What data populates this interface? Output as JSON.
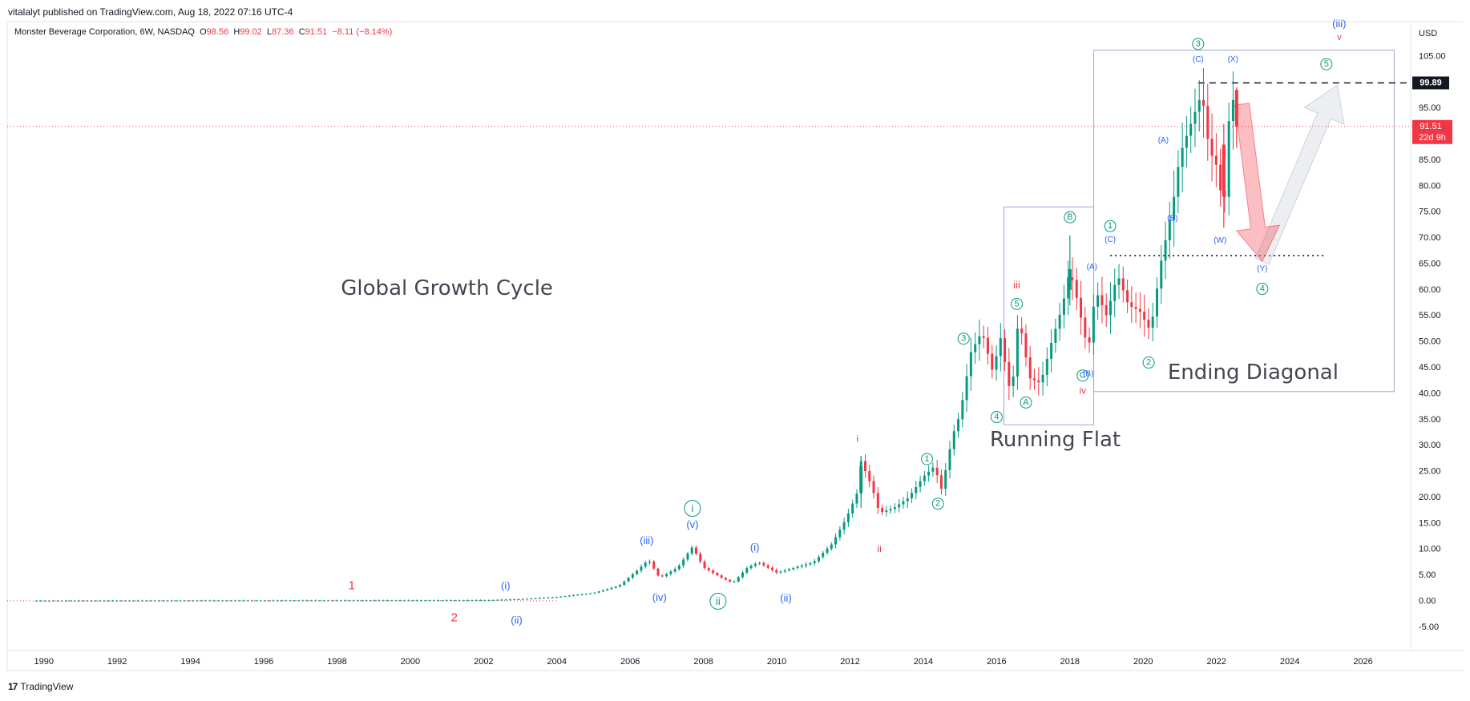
{
  "header": {
    "published": "vitalalyt published on TradingView.com, Aug 18, 2022 07:16 UTC-4"
  },
  "legend": {
    "symbol": "Monster Beverage Corporation, 6W, NASDAQ",
    "o_label": "O",
    "o_value": "98.56",
    "h_label": "H",
    "h_value": "99.02",
    "l_label": "L",
    "l_value": "87.36",
    "c_label": "C",
    "c_value": "91.51",
    "change": "−8.11 (−8.14%)"
  },
  "footer": {
    "brand": "TradingView"
  },
  "colors": {
    "up": "#089981",
    "down": "#f23645",
    "wave_blue": "#2962ff",
    "wave_green": "#089981",
    "wave_red": "#f23645",
    "box": "#9aa5d8"
  },
  "chart_data": {
    "type": "candlestick",
    "currency": "USD",
    "x_ticks": [
      "1990",
      "1992",
      "1994",
      "1996",
      "1998",
      "2000",
      "2002",
      "2004",
      "2006",
      "2008",
      "2010",
      "2012",
      "2014",
      "2016",
      "2018",
      "2020",
      "2022",
      "2024",
      "2026"
    ],
    "y_ticks": [
      "105.00",
      "95.00",
      "90.00",
      "85.00",
      "80.00",
      "75.00",
      "70.00",
      "65.00",
      "60.00",
      "55.00",
      "50.00",
      "45.00",
      "40.00",
      "35.00",
      "30.00",
      "25.00",
      "20.00",
      "15.00",
      "10.00",
      "5.00",
      "0.00",
      "-5.00"
    ],
    "xlim": [
      1989,
      2027.3
    ],
    "ylim": [
      -9.5,
      111.7
    ],
    "last_price": "91.51",
    "countdown": "22d 9h",
    "level_label": "99.89",
    "level_high": 99.89,
    "level_low": 66.6,
    "price_path": [
      [
        1989.8,
        0.1
      ],
      [
        2002.0,
        0.2
      ],
      [
        2003.0,
        0.4
      ],
      [
        2004.0,
        0.8
      ],
      [
        2005.0,
        1.6
      ],
      [
        2005.7,
        3.0
      ],
      [
        2006.2,
        6.0
      ],
      [
        2006.5,
        8.0
      ],
      [
        2006.8,
        4.5
      ],
      [
        2007.3,
        6.5
      ],
      [
        2007.7,
        10.5
      ],
      [
        2008.0,
        6.5
      ],
      [
        2008.5,
        4.5
      ],
      [
        2008.8,
        3.5
      ],
      [
        2009.2,
        6.5
      ],
      [
        2009.5,
        7.5
      ],
      [
        2010.0,
        5.5
      ],
      [
        2010.5,
        6.5
      ],
      [
        2011.0,
        7.5
      ],
      [
        2011.5,
        11.0
      ],
      [
        2011.9,
        16.0
      ],
      [
        2012.2,
        21.0
      ],
      [
        2012.3,
        27.0
      ],
      [
        2012.6,
        22.0
      ],
      [
        2012.8,
        17.0
      ],
      [
        2013.2,
        18.0
      ],
      [
        2013.6,
        20.0
      ],
      [
        2014.0,
        24.0
      ],
      [
        2014.3,
        26.0
      ],
      [
        2014.5,
        21.5
      ],
      [
        2014.8,
        32.0
      ],
      [
        2015.0,
        36.0
      ],
      [
        2015.3,
        48.0
      ],
      [
        2015.6,
        52.0
      ],
      [
        2015.9,
        44.0
      ],
      [
        2016.1,
        51.0
      ],
      [
        2016.4,
        39.0
      ],
      [
        2016.6,
        55.0
      ],
      [
        2016.9,
        43.0
      ],
      [
        2017.2,
        42.0
      ],
      [
        2017.5,
        50.0
      ],
      [
        2017.8,
        57.0
      ],
      [
        2018.0,
        64.0
      ],
      [
        2018.2,
        58.0
      ],
      [
        2018.5,
        48.0
      ],
      [
        2018.7,
        60.0
      ],
      [
        2019.0,
        55.0
      ],
      [
        2019.3,
        63.0
      ],
      [
        2019.6,
        57.0
      ],
      [
        2019.9,
        56.0
      ],
      [
        2020.2,
        52.0
      ],
      [
        2020.5,
        66.0
      ],
      [
        2020.8,
        76.0
      ],
      [
        2021.0,
        86.0
      ],
      [
        2021.3,
        92.0
      ],
      [
        2021.6,
        98.0
      ],
      [
        2021.8,
        87.0
      ],
      [
        2022.0,
        84.0
      ],
      [
        2022.2,
        75.0
      ],
      [
        2022.35,
        94.0
      ],
      [
        2022.55,
        99.0
      ],
      [
        2022.65,
        91.5
      ]
    ],
    "highlight_candles": [
      {
        "t": 2012.3,
        "o": 21,
        "h": 28,
        "l": 18,
        "c": 26
      },
      {
        "t": 2018.0,
        "o": 60,
        "h": 70.5,
        "l": 57,
        "c": 64
      },
      {
        "t": 2022.2,
        "o": 88,
        "h": 92,
        "l": 72,
        "c": 78
      },
      {
        "t": 2022.55,
        "o": 98.56,
        "h": 99.02,
        "l": 87.36,
        "c": 91.51
      }
    ],
    "annotations": [
      {
        "text": "1",
        "t": 1998.4,
        "p": 3.0,
        "color": "red",
        "size": 15
      },
      {
        "text": "2",
        "t": 2001.2,
        "p": -3.2,
        "color": "red",
        "size": 15
      },
      {
        "text": "(i)",
        "t": 2002.6,
        "p": 3.0,
        "color": "blue",
        "size": 13
      },
      {
        "text": "(ii)",
        "t": 2002.9,
        "p": -3.6,
        "color": "blue",
        "size": 13
      },
      {
        "text": "(iii)",
        "t": 2006.45,
        "p": 11.7,
        "color": "blue",
        "size": 13
      },
      {
        "text": "(iv)",
        "t": 2006.8,
        "p": 0.8,
        "color": "blue",
        "size": 13
      },
      {
        "text": "i",
        "t": 2007.7,
        "p": 17.9,
        "color": "green",
        "size": 13,
        "circle": true
      },
      {
        "text": "(v)",
        "t": 2007.7,
        "p": 14.8,
        "color": "blue",
        "size": 13
      },
      {
        "text": "ii",
        "t": 2008.4,
        "p": 0.0,
        "color": "green",
        "size": 13,
        "circle": true
      },
      {
        "text": "(i)",
        "t": 2009.4,
        "p": 10.4,
        "color": "blue",
        "size": 13
      },
      {
        "text": "(ii)",
        "t": 2010.25,
        "p": 0.6,
        "color": "blue",
        "size": 13
      },
      {
        "text": "i",
        "t": 2012.2,
        "p": 31.3,
        "color": "red",
        "size": 12
      },
      {
        "text": "ii",
        "t": 2012.8,
        "p": 10.1,
        "color": "red",
        "size": 12
      },
      {
        "text": "1",
        "t": 2014.1,
        "p": 27.4,
        "color": "green",
        "size": 11,
        "circle": true
      },
      {
        "text": "2",
        "t": 2014.4,
        "p": 18.8,
        "color": "green",
        "size": 11,
        "circle": true
      },
      {
        "text": "3",
        "t": 2015.1,
        "p": 50.6,
        "color": "green",
        "size": 11,
        "circle": true
      },
      {
        "text": "4",
        "t": 2016.0,
        "p": 35.5,
        "color": "green",
        "size": 11,
        "circle": true
      },
      {
        "text": "5",
        "t": 2016.55,
        "p": 57.3,
        "color": "green",
        "size": 11,
        "circle": true
      },
      {
        "text": "iii",
        "t": 2016.55,
        "p": 61.0,
        "color": "red",
        "size": 13
      },
      {
        "text": "A",
        "t": 2016.8,
        "p": 38.3,
        "color": "green",
        "size": 11,
        "circle": true
      },
      {
        "text": "B",
        "t": 2018.0,
        "p": 74.0,
        "color": "green",
        "size": 11,
        "circle": true
      },
      {
        "text": "C",
        "t": 2018.35,
        "p": 43.5,
        "color": "green",
        "size": 11,
        "circle": true
      },
      {
        "text": "iv",
        "t": 2018.35,
        "p": 40.6,
        "color": "red",
        "size": 12
      },
      {
        "text": "(A)",
        "t": 2018.6,
        "p": 64.4,
        "color": "blue",
        "size": 10
      },
      {
        "text": "(B)",
        "t": 2018.5,
        "p": 43.8,
        "color": "blue",
        "size": 10
      },
      {
        "text": "1",
        "t": 2019.1,
        "p": 72.3,
        "color": "green",
        "size": 11,
        "circle": true
      },
      {
        "text": "(C)",
        "t": 2019.1,
        "p": 69.6,
        "color": "blue",
        "size": 10
      },
      {
        "text": "2",
        "t": 2020.15,
        "p": 46.0,
        "color": "green",
        "size": 11,
        "circle": true
      },
      {
        "text": "(A)",
        "t": 2020.55,
        "p": 88.8,
        "color": "blue",
        "size": 10
      },
      {
        "text": "(B)",
        "t": 2020.8,
        "p": 73.7,
        "color": "blue",
        "size": 10
      },
      {
        "text": "3",
        "t": 2021.5,
        "p": 107.4,
        "color": "green",
        "size": 11,
        "circle": true
      },
      {
        "text": "(C)",
        "t": 2021.5,
        "p": 104.4,
        "color": "blue",
        "size": 10
      },
      {
        "text": "(X)",
        "t": 2022.45,
        "p": 104.4,
        "color": "blue",
        "size": 10
      },
      {
        "text": "(W)",
        "t": 2022.1,
        "p": 69.5,
        "color": "blue",
        "size": 10
      },
      {
        "text": "(Y)",
        "t": 2023.25,
        "p": 64.0,
        "color": "blue",
        "size": 10
      },
      {
        "text": "4",
        "t": 2023.25,
        "p": 60.2,
        "color": "green",
        "size": 11,
        "circle": true
      },
      {
        "text": "5",
        "t": 2025.0,
        "p": 103.5,
        "color": "green",
        "size": 11,
        "circle": true
      },
      {
        "text": "(iii)",
        "t": 2025.35,
        "p": 111.3,
        "color": "blue",
        "size": 13
      },
      {
        "text": "v",
        "t": 2025.35,
        "p": 108.6,
        "color": "red",
        "size": 11
      }
    ],
    "titles": [
      {
        "text": "Global Growth Cycle",
        "t": 2001.0,
        "p": 60.3
      },
      {
        "text": "Running Flat",
        "t": 2017.6,
        "p": 31.1
      },
      {
        "text": "Ending Diagonal",
        "t": 2023.0,
        "p": 44.1
      }
    ],
    "boxes": [
      {
        "name": "running-flat-box",
        "t0": 2016.2,
        "t1": 2018.65,
        "p0": 34.0,
        "p1": 76.0
      },
      {
        "name": "ending-diagonal-box",
        "t0": 2018.65,
        "t1": 2026.85,
        "p0": 40.4,
        "p1": 106.2
      }
    ],
    "projection": {
      "down": [
        [
          2022.7,
          95.8
        ],
        [
          2023.25,
          65.5
        ]
      ],
      "up": [
        [
          2023.25,
          65.5
        ],
        [
          2025.3,
          99.5
        ]
      ]
    }
  }
}
